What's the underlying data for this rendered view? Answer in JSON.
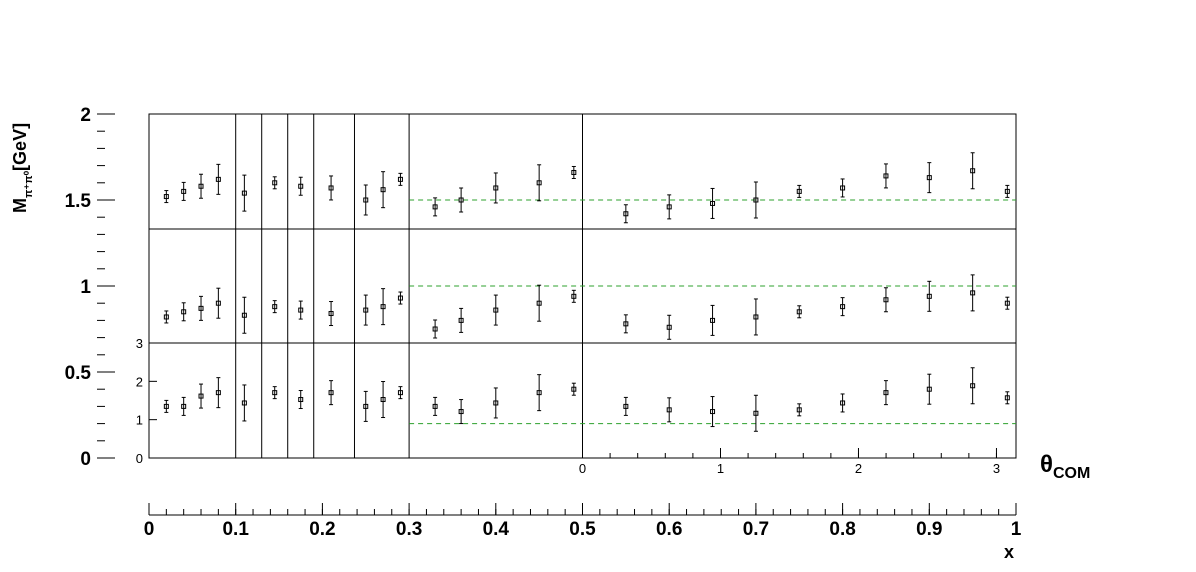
{
  "chart_data": {
    "type": "scatter",
    "title": "",
    "ylabel_main": "M",
    "ylabel_sub": "π⁺π⁰",
    "ylabel_unit": "[GeV]",
    "theta_label_main": "θ",
    "theta_label_sub": "COM",
    "xlabel": "x",
    "y_range": [
      0,
      2
    ],
    "y_ticks": [
      "0",
      "0.5",
      "1",
      "1.5",
      "2"
    ],
    "x_range": [
      0,
      1
    ],
    "x_ticks": [
      "0",
      "0.1",
      "0.2",
      "0.3",
      "0.4",
      "0.5",
      "0.6",
      "0.7",
      "0.8",
      "0.9",
      "1"
    ],
    "theta_ticks": [
      "0",
      "1",
      "2",
      "3"
    ],
    "inner_y_ticks": [
      "0",
      "1",
      "2",
      "3"
    ],
    "band_lines": [
      0.2,
      1.0,
      1.5
    ],
    "x_boundaries": [
      0.1,
      0.13,
      0.16,
      0.19,
      0.237,
      0.3
    ],
    "series": [
      {
        "band": "upper",
        "points_x": [
          0.02,
          0.04,
          0.06,
          0.08,
          0.11,
          0.145,
          0.175,
          0.21,
          0.25,
          0.27,
          0.29,
          0.33,
          0.36,
          0.4,
          0.45,
          0.49,
          0.55,
          0.6,
          0.65,
          0.7,
          0.75,
          0.8,
          0.85,
          0.9,
          0.95,
          0.99
        ],
        "points_y": [
          1.52,
          1.55,
          1.58,
          1.62,
          1.54,
          1.6,
          1.58,
          1.57,
          1.5,
          1.56,
          1.62,
          1.46,
          1.5,
          1.57,
          1.6,
          1.66,
          1.42,
          1.46,
          1.48,
          1.5,
          1.55,
          1.57,
          1.64,
          1.63,
          1.67,
          1.55
        ]
      },
      {
        "band": "middle",
        "points_x": [
          0.02,
          0.04,
          0.06,
          0.08,
          0.11,
          0.145,
          0.175,
          0.21,
          0.25,
          0.27,
          0.29,
          0.33,
          0.36,
          0.4,
          0.45,
          0.49,
          0.55,
          0.6,
          0.65,
          0.7,
          0.75,
          0.8,
          0.85,
          0.9,
          0.95,
          0.99
        ],
        "points_y": [
          0.82,
          0.85,
          0.87,
          0.9,
          0.83,
          0.88,
          0.86,
          0.84,
          0.86,
          0.88,
          0.93,
          0.75,
          0.8,
          0.86,
          0.9,
          0.94,
          0.78,
          0.76,
          0.8,
          0.82,
          0.85,
          0.88,
          0.92,
          0.94,
          0.96,
          0.9
        ]
      },
      {
        "band": "lower",
        "points_x": [
          0.02,
          0.04,
          0.06,
          0.08,
          0.11,
          0.145,
          0.175,
          0.21,
          0.25,
          0.27,
          0.29,
          0.33,
          0.36,
          0.4,
          0.45,
          0.49,
          0.55,
          0.6,
          0.65,
          0.7,
          0.75,
          0.8,
          0.85,
          0.9,
          0.95,
          0.99
        ],
        "points_y": [
          0.3,
          0.3,
          0.36,
          0.38,
          0.32,
          0.38,
          0.34,
          0.38,
          0.3,
          0.34,
          0.38,
          0.3,
          0.27,
          0.32,
          0.38,
          0.4,
          0.3,
          0.28,
          0.27,
          0.26,
          0.28,
          0.32,
          0.38,
          0.4,
          0.42,
          0.35
        ]
      }
    ]
  }
}
